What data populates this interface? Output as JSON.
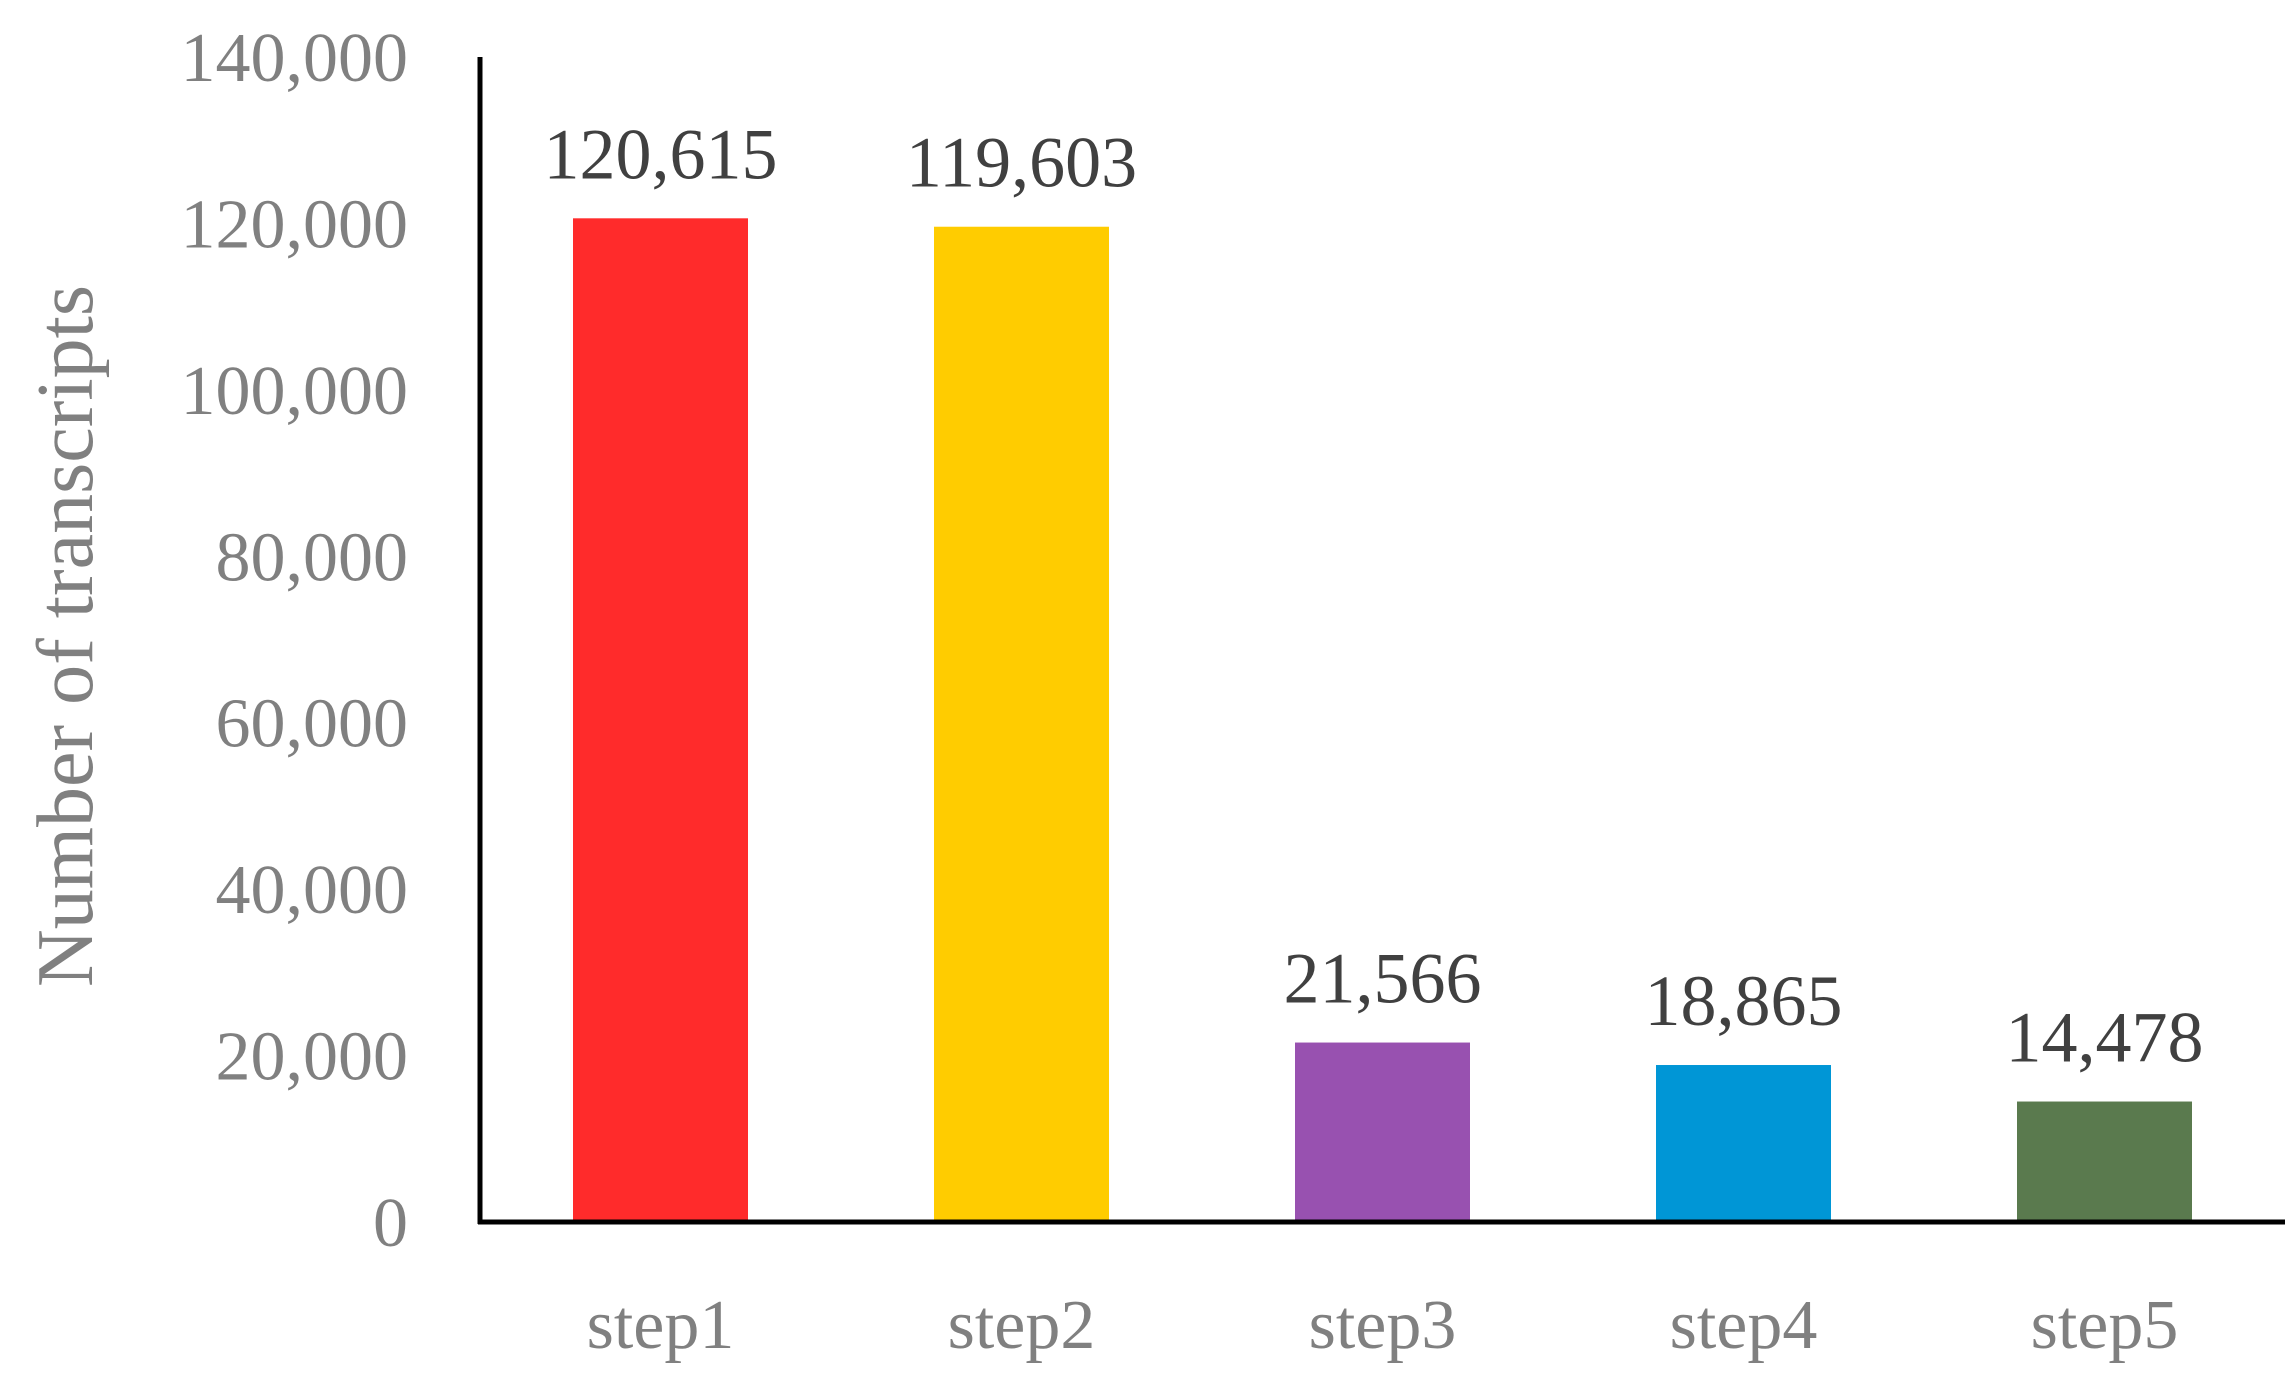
{
  "chart_data": {
    "type": "bar",
    "categories": [
      "step1",
      "step2",
      "step3",
      "step4",
      "step5"
    ],
    "values": [
      120615,
      119603,
      21566,
      18865,
      14478
    ],
    "data_labels": [
      "120,615",
      "119,603",
      "21,566",
      "18,865",
      "14,478"
    ],
    "colors": [
      "#ff2b2b",
      "#ffcc00",
      "#9851b0",
      "#0096d6",
      "#5a7a4e"
    ],
    "ylabel": "Number of transcripts",
    "ylim": [
      0,
      140000
    ],
    "yticks": [
      0,
      20000,
      40000,
      60000,
      80000,
      100000,
      120000,
      140000
    ],
    "ytick_labels": [
      "0",
      "20,000",
      "40,000",
      "60,000",
      "80,000",
      "100,000",
      "120,000",
      "140,000"
    ],
    "grid": false,
    "legend": "none"
  }
}
